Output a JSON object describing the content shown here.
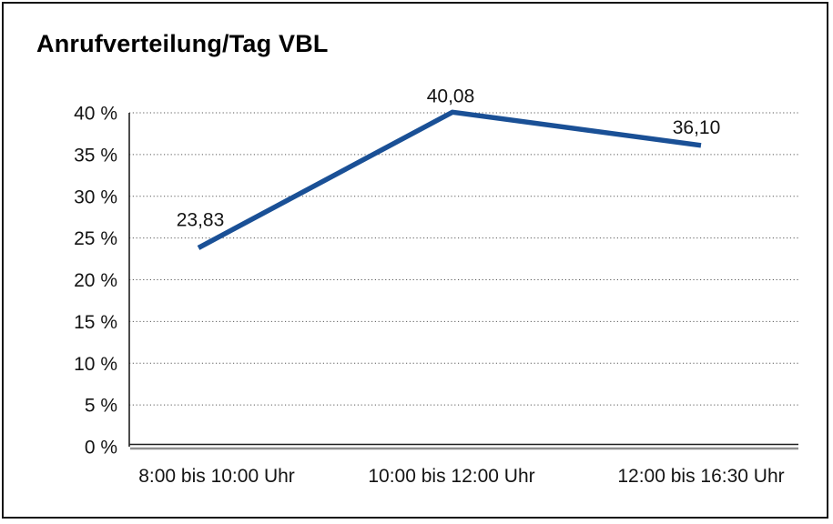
{
  "chart_data": {
    "type": "line",
    "title": "Anrufverteilung/Tag VBL",
    "categories": [
      "8:00 bis 10:00 Uhr",
      "10:00 bis 12:00 Uhr",
      "12:00 bis 16:30 Uhr"
    ],
    "values": [
      23.83,
      40.08,
      36.1
    ],
    "value_labels": [
      "23,83",
      "40,08",
      "36,10"
    ],
    "series": [
      {
        "name": "Anrufverteilung",
        "values": [
          23.83,
          40.08,
          36.1
        ]
      }
    ],
    "xlabel": "",
    "ylabel": "",
    "ylim": [
      0,
      40
    ],
    "y_tick_step": 5,
    "y_tick_labels": [
      "0 %",
      "5 %",
      "10 %",
      "15 %",
      "20 %",
      "25 %",
      "30 %",
      "35 %",
      "40 %"
    ],
    "grid": "horizontal-dotted",
    "legend": "none",
    "colors": {
      "line": "#1a5096",
      "text": "#141414",
      "gridline": "#5a5a5a",
      "axis": "#1f1f1f",
      "axis_shadow": "#8f8f8f",
      "frame": "#141414",
      "background": "#ffffff"
    }
  }
}
